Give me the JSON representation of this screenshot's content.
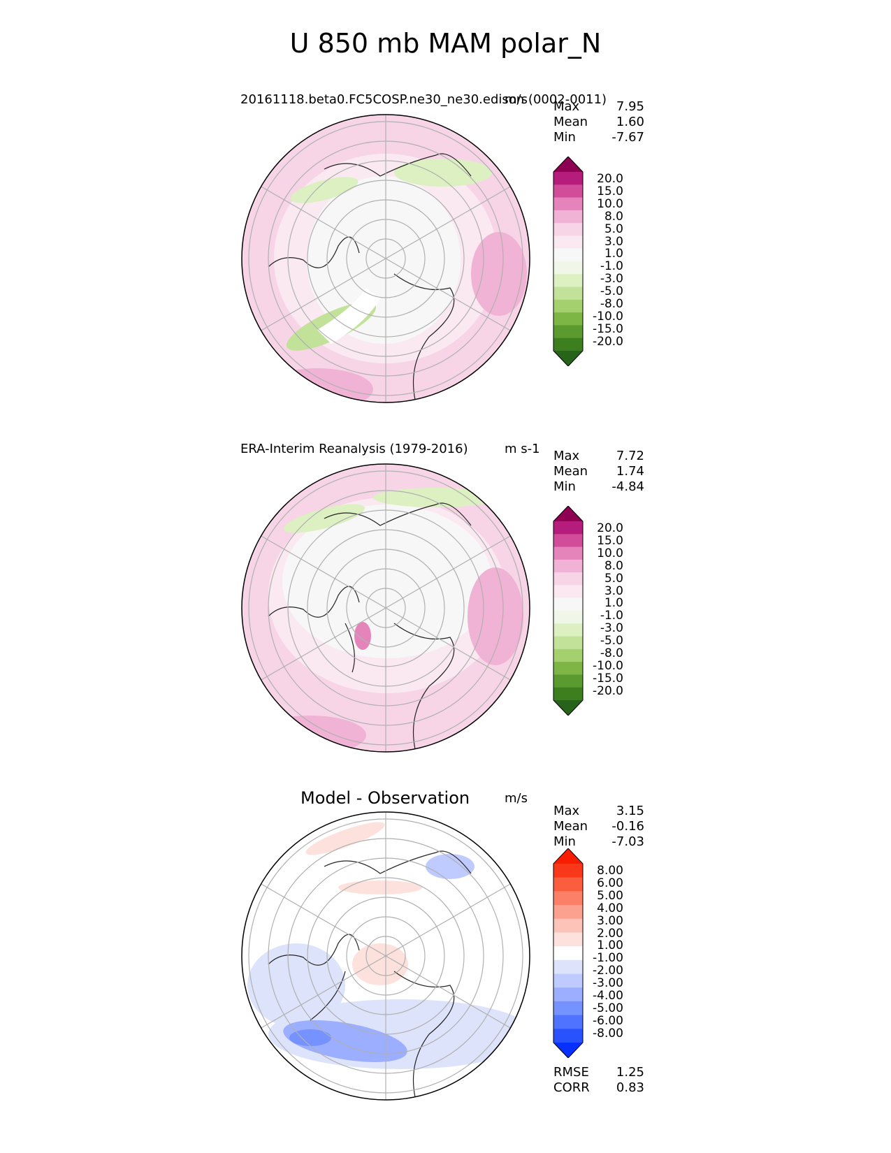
{
  "title": "U 850 mb MAM polar_N",
  "panels": [
    {
      "title": "20161118.beta0.FC5COSP.ne30_ne30.edison (0002-0011)",
      "units": "m/s",
      "stats": {
        "max_label": "Max",
        "max": "7.95",
        "mean_label": "Mean",
        "mean": "1.60",
        "min_label": "Min",
        "min": "-7.67"
      },
      "colorbar": {
        "colors": [
          "#276419",
          "#3d7f1e",
          "#5a9a2e",
          "#7db645",
          "#a4d06e",
          "#c2e199",
          "#dcf0c1",
          "#f0f7e8",
          "#f7f7f7",
          "#fbe9f2",
          "#f7d5e7",
          "#f0b3d5",
          "#e584bb",
          "#d24d99",
          "#b61c7b",
          "#8e0152"
        ],
        "labels": [
          "20.0",
          "15.0",
          "10.0",
          "8.0",
          "5.0",
          "3.0",
          "1.0",
          "-1.0",
          "-3.0",
          "-5.0",
          "-8.0",
          "-10.0",
          "-15.0",
          "-20.0"
        ]
      }
    },
    {
      "title": "ERA-Interim Reanalysis (1979-2016)",
      "units": "m s-1",
      "stats": {
        "max_label": "Max",
        "max": "7.72",
        "mean_label": "Mean",
        "mean": "1.74",
        "min_label": "Min",
        "min": "-4.84"
      },
      "colorbar": {
        "colors": [
          "#276419",
          "#3d7f1e",
          "#5a9a2e",
          "#7db645",
          "#a4d06e",
          "#c2e199",
          "#dcf0c1",
          "#f0f7e8",
          "#f7f7f7",
          "#fbe9f2",
          "#f7d5e7",
          "#f0b3d5",
          "#e584bb",
          "#d24d99",
          "#b61c7b",
          "#8e0152"
        ],
        "labels": [
          "20.0",
          "15.0",
          "10.0",
          "8.0",
          "5.0",
          "3.0",
          "1.0",
          "-1.0",
          "-3.0",
          "-5.0",
          "-8.0",
          "-10.0",
          "-15.0",
          "-20.0"
        ]
      }
    },
    {
      "title": "Model - Observation",
      "units": "m/s",
      "stats": {
        "max_label": "Max",
        "max": "3.15",
        "mean_label": "Mean",
        "mean": "-0.16",
        "min_label": "Min",
        "min": "-7.03"
      },
      "colorbar": {
        "colors": [
          "#0530ff",
          "#2952ff",
          "#4f73ff",
          "#7592ff",
          "#9caeff",
          "#bfcaff",
          "#dde3fb",
          "#ffffff",
          "#fde1dc",
          "#fcc3b8",
          "#fca18f",
          "#fb8067",
          "#fa5e3e",
          "#f93819",
          "#f81d00"
        ],
        "labels": [
          "8.00",
          "6.00",
          "5.00",
          "4.00",
          "3.00",
          "2.00",
          "1.00",
          "-1.00",
          "-2.00",
          "-3.00",
          "-4.00",
          "-5.00",
          "-6.00",
          "-8.00"
        ]
      },
      "metrics": {
        "rmse_label": "RMSE",
        "rmse": "1.25",
        "corr_label": "CORR",
        "corr": "0.83"
      }
    }
  ]
}
